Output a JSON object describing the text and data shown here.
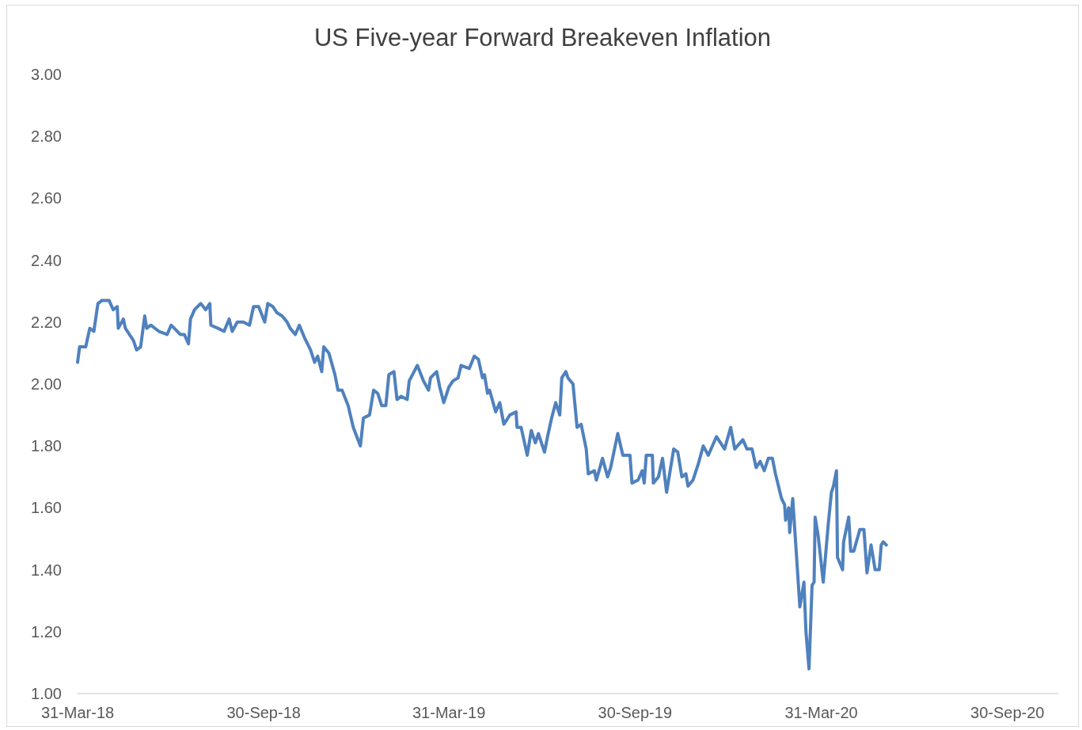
{
  "chart_data": {
    "type": "line",
    "title": "US Five-year Forward Breakeven Inflation",
    "x": [
      "2018-03-31",
      "2018-04-02",
      "2018-04-08",
      "2018-04-12",
      "2018-04-16",
      "2018-04-20",
      "2018-04-24",
      "2018-05-01",
      "2018-05-05",
      "2018-05-09",
      "2018-05-10",
      "2018-05-15",
      "2018-05-17",
      "2018-05-25",
      "2018-05-28",
      "2018-06-01",
      "2018-06-05",
      "2018-06-07",
      "2018-06-11",
      "2018-06-19",
      "2018-06-27",
      "2018-07-01",
      "2018-07-10",
      "2018-07-14",
      "2018-07-18",
      "2018-07-20",
      "2018-07-24",
      "2018-07-30",
      "2018-08-04",
      "2018-08-08",
      "2018-08-09",
      "2018-08-16",
      "2018-08-22",
      "2018-08-27",
      "2018-08-30",
      "2018-09-04",
      "2018-09-10",
      "2018-09-16",
      "2018-09-20",
      "2018-09-25",
      "2018-10-01",
      "2018-10-04",
      "2018-10-09",
      "2018-10-13",
      "2018-10-18",
      "2018-10-23",
      "2018-10-26",
      "2018-10-31",
      "2018-11-04",
      "2018-11-09",
      "2018-11-15",
      "2018-11-19",
      "2018-11-22",
      "2018-11-26",
      "2018-11-28",
      "2018-12-03",
      "2018-12-09",
      "2018-12-12",
      "2018-12-16",
      "2018-12-22",
      "2018-12-27",
      "2019-01-03",
      "2019-01-06",
      "2019-01-12",
      "2019-01-16",
      "2019-01-20",
      "2019-01-24",
      "2019-01-28",
      "2019-01-31",
      "2019-02-05",
      "2019-02-08",
      "2019-02-12",
      "2019-02-18",
      "2019-02-20",
      "2019-02-28",
      "2019-03-06",
      "2019-03-11",
      "2019-03-13",
      "2019-03-19",
      "2019-03-22",
      "2019-03-26",
      "2019-03-31",
      "2019-04-04",
      "2019-04-09",
      "2019-04-12",
      "2019-04-20",
      "2019-04-25",
      "2019-04-29",
      "2019-05-03",
      "2019-05-05",
      "2019-05-08",
      "2019-05-10",
      "2019-05-16",
      "2019-05-20",
      "2019-05-24",
      "2019-05-28",
      "2019-05-30",
      "2019-06-05",
      "2019-06-06",
      "2019-06-10",
      "2019-06-16",
      "2019-06-20",
      "2019-06-24",
      "2019-06-27",
      "2019-07-03",
      "2019-07-06",
      "2019-07-10",
      "2019-07-14",
      "2019-07-18",
      "2019-07-20",
      "2019-07-24",
      "2019-07-26",
      "2019-07-31",
      "2019-08-04",
      "2019-08-08",
      "2019-08-13",
      "2019-08-15",
      "2019-08-21",
      "2019-08-23",
      "2019-08-29",
      "2019-09-03",
      "2019-09-06",
      "2019-09-13",
      "2019-09-18",
      "2019-09-25",
      "2019-09-27",
      "2019-10-03",
      "2019-10-07",
      "2019-10-09",
      "2019-10-11",
      "2019-10-17",
      "2019-10-18",
      "2019-10-23",
      "2019-10-27",
      "2019-10-31",
      "2019-11-07",
      "2019-11-11",
      "2019-11-15",
      "2019-11-19",
      "2019-11-21",
      "2019-11-26",
      "2019-12-01",
      "2019-12-06",
      "2019-12-11",
      "2019-12-19",
      "2019-12-27",
      "2020-01-02",
      "2020-01-06",
      "2020-01-14",
      "2020-01-18",
      "2020-01-23",
      "2020-01-27",
      "2020-01-31",
      "2020-02-04",
      "2020-02-08",
      "2020-02-12",
      "2020-02-15",
      "2020-02-21",
      "2020-02-24",
      "2020-02-25",
      "2020-02-28",
      "2020-02-29",
      "2020-03-03",
      "2020-03-10",
      "2020-03-14",
      "2020-03-16",
      "2020-03-19",
      "2020-03-22",
      "2020-03-24",
      "2020-03-25",
      "2020-03-28",
      "2020-04-02",
      "2020-04-07",
      "2020-04-10",
      "2020-04-12",
      "2020-04-15",
      "2020-04-16",
      "2020-04-21",
      "2020-04-22",
      "2020-04-27",
      "2020-04-29",
      "2020-05-02",
      "2020-05-08",
      "2020-05-12",
      "2020-05-15",
      "2020-05-19",
      "2020-05-23",
      "2020-05-27",
      "2020-05-29",
      "2020-05-31",
      "2020-06-03"
    ],
    "series": [
      {
        "color": "#4f81bd",
        "values": [
          2.07,
          2.12,
          2.12,
          2.18,
          2.17,
          2.26,
          2.27,
          2.27,
          2.24,
          2.25,
          2.18,
          2.21,
          2.18,
          2.14,
          2.11,
          2.12,
          2.22,
          2.18,
          2.19,
          2.17,
          2.16,
          2.19,
          2.16,
          2.16,
          2.13,
          2.21,
          2.24,
          2.26,
          2.24,
          2.26,
          2.19,
          2.18,
          2.17,
          2.21,
          2.17,
          2.2,
          2.2,
          2.19,
          2.25,
          2.25,
          2.2,
          2.26,
          2.25,
          2.23,
          2.22,
          2.2,
          2.18,
          2.16,
          2.19,
          2.15,
          2.11,
          2.07,
          2.09,
          2.04,
          2.12,
          2.1,
          2.03,
          1.98,
          1.98,
          1.93,
          1.86,
          1.8,
          1.89,
          1.9,
          1.98,
          1.97,
          1.93,
          1.93,
          2.03,
          2.04,
          1.95,
          1.96,
          1.95,
          2.01,
          2.06,
          2.01,
          1.98,
          2.02,
          2.04,
          1.99,
          1.94,
          1.99,
          2.01,
          2.02,
          2.06,
          2.05,
          2.09,
          2.08,
          2.02,
          2.03,
          1.97,
          1.98,
          1.91,
          1.94,
          1.87,
          1.89,
          1.9,
          1.91,
          1.86,
          1.86,
          1.77,
          1.85,
          1.81,
          1.84,
          1.78,
          1.83,
          1.89,
          1.94,
          1.9,
          2.02,
          2.04,
          2.02,
          2.0,
          1.86,
          1.87,
          1.79,
          1.71,
          1.72,
          1.69,
          1.76,
          1.7,
          1.73,
          1.84,
          1.77,
          1.77,
          1.68,
          1.69,
          1.72,
          1.68,
          1.77,
          1.77,
          1.68,
          1.7,
          1.76,
          1.65,
          1.79,
          1.78,
          1.7,
          1.71,
          1.67,
          1.69,
          1.74,
          1.8,
          1.77,
          1.83,
          1.79,
          1.86,
          1.79,
          1.82,
          1.79,
          1.79,
          1.73,
          1.75,
          1.72,
          1.76,
          1.76,
          1.71,
          1.63,
          1.61,
          1.56,
          1.6,
          1.52,
          1.63,
          1.28,
          1.36,
          1.2,
          1.08,
          1.35,
          1.36,
          1.57,
          1.51,
          1.36,
          1.55,
          1.65,
          1.67,
          1.72,
          1.44,
          1.4,
          1.49,
          1.57,
          1.46,
          1.46,
          1.53,
          1.53,
          1.39,
          1.48,
          1.4,
          1.4,
          1.48,
          1.49,
          1.48
        ]
      }
    ],
    "xlim": [
      "2018-03-31",
      "2020-11-19"
    ],
    "xticks": [
      {
        "value": "2018-03-31",
        "label": "31-Mar-18"
      },
      {
        "value": "2018-09-30",
        "label": "30-Sep-18"
      },
      {
        "value": "2019-03-31",
        "label": "31-Mar-19"
      },
      {
        "value": "2019-09-30",
        "label": "30-Sep-19"
      },
      {
        "value": "2020-03-31",
        "label": "31-Mar-20"
      },
      {
        "value": "2020-09-30",
        "label": "30-Sep-20"
      }
    ],
    "ylim": [
      1,
      3
    ],
    "yticks": [
      {
        "value": 1,
        "label": "1.00"
      },
      {
        "value": 1.2,
        "label": "1.20"
      },
      {
        "value": 1.4,
        "label": "1.40"
      },
      {
        "value": 1.6,
        "label": "1.60"
      },
      {
        "value": 1.8,
        "label": "1.80"
      },
      {
        "value": 2,
        "label": "2.00"
      },
      {
        "value": 2.2,
        "label": "2.20"
      },
      {
        "value": 2.4,
        "label": "2.40"
      },
      {
        "value": 2.6,
        "label": "2.60"
      },
      {
        "value": 2.8,
        "label": "2.80"
      },
      {
        "value": 3,
        "label": "3.00"
      }
    ],
    "grid": false,
    "marker": "none",
    "line_style": "solid"
  }
}
